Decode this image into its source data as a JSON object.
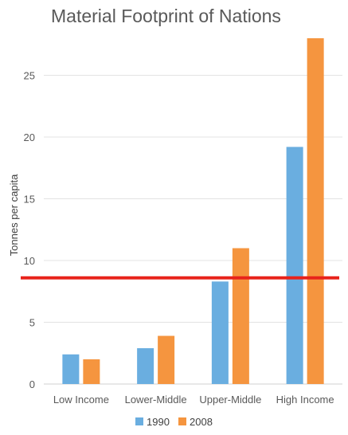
{
  "chart_data": {
    "type": "bar",
    "title": "Material Footprint of Nations",
    "ylabel": "Tonnes per capita",
    "xlabel": "",
    "categories": [
      "Low Income",
      "Lower-Middle",
      "Upper-Middle",
      "High Income"
    ],
    "series": [
      {
        "name": "1990",
        "color": "#6aaee0",
        "values": [
          2.4,
          2.9,
          8.3,
          19.2
        ]
      },
      {
        "name": "2008",
        "color": "#f5953f",
        "values": [
          2.0,
          3.9,
          11.0,
          28.0
        ]
      }
    ],
    "ylim": [
      0,
      28
    ],
    "yticks": [
      "0",
      "5",
      "10",
      "15",
      "20",
      "25"
    ],
    "grid": true,
    "legend": "bottom",
    "reference_line": {
      "value": 8.6,
      "color": "#e8231b"
    }
  }
}
